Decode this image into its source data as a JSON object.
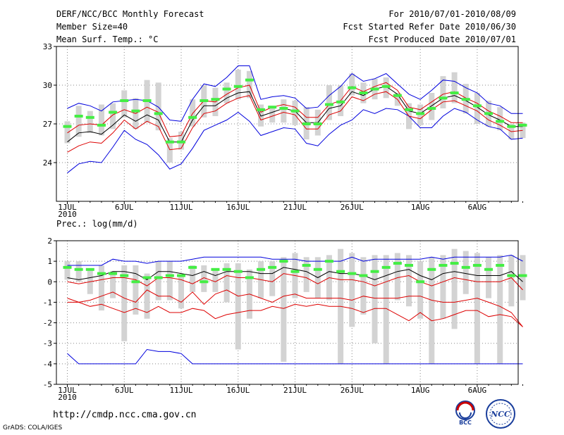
{
  "header": {
    "title": "DERF/NCC/BCC Monthly Forecast",
    "member_size": "Member Size=40",
    "variable": "Mean Surf. Temp.: °C",
    "period": "For 2010/07/01-2010/08/09",
    "started": "Fcst Started Refer Date 2010/06/30",
    "produced": "Fcst Produced Date 2010/07/01"
  },
  "footer": {
    "url": "http://cmdp.ncc.cma.gov.cn",
    "grads": "GrADS: COLA/IGES",
    "logo_bcc": "BCC",
    "logo_ncc": "NCC"
  },
  "colors": {
    "mean": "#000000",
    "band": "#dd0000",
    "extreme": "#0000dd",
    "box": "#d3d3d3",
    "obs": "#44ee44",
    "grid": "#888888"
  },
  "chart_data": [
    {
      "type": "box-plume",
      "title": "Mean Surf. Temp.: °C",
      "x_ticks": [
        "1JUL",
        "6JUL",
        "11JUL",
        "16JUL",
        "21JUL",
        "26JUL",
        "1AUG",
        "6AUG"
      ],
      "x_tick_days": [
        0,
        5,
        10,
        15,
        20,
        25,
        31,
        36
      ],
      "year_label": "2010",
      "ylim": [
        21,
        33
      ],
      "y_ticks": [
        24,
        27,
        30,
        33
      ],
      "series": [
        {
          "name": "max",
          "values": [
            23.2,
            23.9,
            24.1,
            24.0,
            25.2,
            26.5,
            25.8,
            25.4,
            24.6,
            23.5,
            23.9,
            25.1,
            26.5,
            26.9,
            27.3,
            27.9,
            27.2,
            26.1,
            26.4,
            26.7,
            26.6,
            25.5,
            25.3,
            26.2,
            26.9,
            27.3,
            28.1,
            27.8,
            28.2,
            28.1,
            27.6,
            26.7,
            26.7,
            27.6,
            28.2,
            27.9,
            27.3,
            26.8,
            26.6,
            25.8,
            25.9
          ]
        },
        {
          "name": "p90",
          "values": [
            24.8,
            25.3,
            25.6,
            25.5,
            26.3,
            27.3,
            26.6,
            27.2,
            26.8,
            25.0,
            25.1,
            26.7,
            27.8,
            28.0,
            28.6,
            29.0,
            29.2,
            27.3,
            27.6,
            27.9,
            27.7,
            26.6,
            26.6,
            27.7,
            28.0,
            29.1,
            28.8,
            29.3,
            29.5,
            28.9,
            27.6,
            27.4,
            28.1,
            28.7,
            28.8,
            28.4,
            28.0,
            27.3,
            26.9,
            26.4,
            26.5
          ]
        },
        {
          "name": "mean",
          "values": [
            25.6,
            26.3,
            26.4,
            26.2,
            26.9,
            27.7,
            27.2,
            27.7,
            27.3,
            25.6,
            25.6,
            27.3,
            28.4,
            28.4,
            29.0,
            29.4,
            29.5,
            27.6,
            27.9,
            28.2,
            28.0,
            27.1,
            27.1,
            28.2,
            28.4,
            29.5,
            29.2,
            29.7,
            29.9,
            29.3,
            28.0,
            27.8,
            28.4,
            29.0,
            29.2,
            28.8,
            28.3,
            27.7,
            27.3,
            26.8,
            26.8
          ]
        },
        {
          "name": "p10",
          "values": [
            26.3,
            26.9,
            27.0,
            26.9,
            27.7,
            28.1,
            27.8,
            28.3,
            27.9,
            26.0,
            26.1,
            27.8,
            28.8,
            28.7,
            29.3,
            29.8,
            30.0,
            27.9,
            28.3,
            28.5,
            28.3,
            27.5,
            27.5,
            28.5,
            28.8,
            29.9,
            29.5,
            29.9,
            30.2,
            29.6,
            28.3,
            28.1,
            28.7,
            29.3,
            29.5,
            29.0,
            28.6,
            28.0,
            27.6,
            27.1,
            27.1
          ]
        },
        {
          "name": "min",
          "values": [
            28.2,
            28.6,
            28.4,
            28.0,
            28.7,
            28.8,
            28.9,
            28.8,
            28.3,
            27.3,
            27.2,
            28.9,
            30.1,
            29.9,
            30.6,
            31.5,
            31.5,
            28.9,
            29.1,
            29.2,
            29.0,
            28.2,
            28.3,
            29.2,
            29.9,
            30.9,
            30.3,
            30.5,
            30.9,
            30.1,
            29.3,
            28.9,
            29.6,
            30.4,
            30.3,
            29.8,
            29.4,
            28.6,
            28.4,
            27.8,
            27.8
          ]
        },
        {
          "name": "observed",
          "values": [
            26.8,
            27.6,
            27.5,
            26.9,
            27.9,
            28.8,
            28.0,
            28.8,
            27.8,
            25.6,
            25.6,
            27.5,
            28.8,
            28.9,
            29.7,
            29.9,
            30.4,
            28.1,
            28.3,
            28.2,
            28.0,
            27.0,
            27.0,
            28.5,
            28.7,
            29.8,
            29.4,
            29.7,
            29.9,
            29.2,
            28.1,
            27.8,
            28.2,
            29.0,
            29.4,
            28.9,
            28.4,
            27.8,
            27.2,
            26.8,
            26.9
          ]
        }
      ],
      "box_low": [
        25.5,
        26.0,
        26.3,
        26.1,
        26.6,
        27.5,
        26.6,
        27.1,
        26.5,
        24.0,
        25.0,
        26.8,
        27.5,
        27.6,
        28.6,
        28.9,
        29.0,
        26.8,
        27.1,
        27.1,
        26.9,
        25.8,
        26.1,
        27.3,
        27.6,
        29.2,
        28.6,
        28.9,
        29.0,
        28.4,
        26.6,
        26.9,
        27.3,
        28.2,
        28.6,
        27.8,
        27.0,
        26.8,
        26.5,
        25.8,
        25.9
      ],
      "box_high": [
        27.2,
        28.4,
        28.0,
        28.5,
        28.6,
        29.6,
        29.0,
        30.4,
        30.2,
        25.9,
        26.4,
        28.9,
        30.0,
        29.8,
        30.2,
        31.2,
        31.1,
        28.5,
        28.4,
        28.9,
        28.8,
        28.3,
        28.1,
        30.0,
        30.0,
        30.9,
        30.2,
        30.5,
        30.6,
        29.4,
        28.6,
        28.5,
        29.4,
        30.7,
        31.0,
        30.1,
        29.4,
        28.8,
        28.3,
        27.0,
        27.1
      ]
    },
    {
      "type": "box-plume",
      "title": "Prec.: log(mm/d)",
      "x_ticks": [
        "1JUL",
        "6JUL",
        "11JUL",
        "16JUL",
        "21JUL",
        "26JUL",
        "1AUG",
        "6AUG"
      ],
      "x_tick_days": [
        0,
        5,
        10,
        15,
        20,
        25,
        31,
        36
      ],
      "year_label": "2010",
      "ylim": [
        -5,
        2
      ],
      "y_ticks": [
        -5,
        -4,
        -3,
        -2,
        -1,
        0,
        1,
        2
      ],
      "series": [
        {
          "name": "max",
          "values": [
            0.8,
            0.8,
            0.8,
            0.8,
            1.1,
            1.0,
            1.0,
            0.9,
            1.0,
            1.0,
            1.0,
            1.1,
            1.2,
            1.2,
            1.2,
            1.2,
            1.2,
            1.2,
            1.1,
            1.1,
            1.1,
            1.0,
            1.0,
            1.0,
            1.0,
            1.2,
            1.0,
            1.1,
            1.1,
            1.1,
            1.1,
            1.1,
            1.2,
            1.1,
            1.2,
            1.2,
            1.2,
            1.2,
            1.2,
            1.3,
            1.0
          ]
        },
        {
          "name": "mean",
          "values": [
            0.2,
            0.1,
            0.2,
            0.3,
            0.5,
            0.5,
            0.4,
            0.1,
            0.5,
            0.5,
            0.4,
            0.3,
            0.5,
            0.3,
            0.5,
            0.5,
            0.5,
            0.4,
            0.4,
            0.7,
            0.6,
            0.5,
            0.2,
            0.5,
            0.4,
            0.4,
            0.3,
            0.1,
            0.3,
            0.5,
            0.6,
            0.3,
            0.1,
            0.4,
            0.5,
            0.4,
            0.3,
            0.3,
            0.3,
            0.5,
            0.0
          ]
        },
        {
          "name": "p10",
          "values": [
            0.0,
            -0.1,
            0.0,
            0.1,
            0.2,
            0.2,
            0.1,
            -0.2,
            0.2,
            0.2,
            0.1,
            -0.1,
            0.2,
            0.0,
            0.3,
            0.2,
            0.2,
            0.1,
            0.0,
            0.4,
            0.3,
            0.2,
            -0.1,
            0.2,
            0.1,
            0.1,
            0.0,
            -0.2,
            0.0,
            0.2,
            0.3,
            0.0,
            -0.2,
            0.0,
            0.2,
            0.1,
            0.0,
            0.0,
            0.0,
            0.2,
            -0.4
          ]
        },
        {
          "name": "p90",
          "values": [
            -0.8,
            -1.0,
            -0.9,
            -0.7,
            -0.5,
            -0.8,
            -1.0,
            -0.4,
            -0.7,
            -0.7,
            -1.0,
            -0.5,
            -1.1,
            -0.6,
            -0.4,
            -0.7,
            -0.6,
            -0.8,
            -1.0,
            -0.7,
            -0.6,
            -0.8,
            -0.8,
            -0.8,
            -0.8,
            -0.9,
            -0.7,
            -0.8,
            -0.8,
            -0.8,
            -0.7,
            -0.7,
            -0.9,
            -1.0,
            -1.0,
            -0.9,
            -0.8,
            -1.0,
            -1.2,
            -1.5,
            -2.2
          ]
        },
        {
          "name": "p95",
          "values": [
            -1.0,
            -1.0,
            -1.2,
            -1.1,
            -1.3,
            -1.5,
            -1.3,
            -1.5,
            -1.2,
            -1.5,
            -1.5,
            -1.3,
            -1.4,
            -1.8,
            -1.6,
            -1.5,
            -1.4,
            -1.4,
            -1.2,
            -1.3,
            -1.1,
            -1.2,
            -1.1,
            -1.2,
            -1.2,
            -1.3,
            -1.5,
            -1.3,
            -1.3,
            -1.6,
            -1.9,
            -1.5,
            -1.9,
            -1.8,
            -1.6,
            -1.4,
            -1.4,
            -1.7,
            -1.6,
            -1.7,
            -2.2
          ]
        },
        {
          "name": "min",
          "values": [
            -3.5,
            -4.0,
            -4.0,
            -4.0,
            -4.0,
            -4.0,
            -4.0,
            -3.3,
            -3.4,
            -3.4,
            -3.5,
            -4.0,
            -4.0,
            -4.0,
            -4.0,
            -4.0,
            -4.0,
            -4.0,
            -4.0,
            -4.0,
            -4.0,
            -4.0,
            -4.0,
            -4.0,
            -4.0,
            -4.0,
            -4.0,
            -4.0,
            -4.0,
            -4.0,
            -4.0,
            -4.0,
            -4.0,
            -4.0,
            -4.0,
            -4.0,
            -4.0,
            -4.0,
            -4.0,
            -4.0,
            -4.0
          ]
        },
        {
          "name": "observed",
          "values": [
            0.7,
            0.6,
            0.6,
            0.4,
            0.4,
            0.3,
            0.0,
            0.2,
            0.2,
            0.3,
            0.3,
            0.7,
            0.0,
            0.6,
            0.6,
            0.5,
            0.2,
            0.6,
            0.7,
            1.0,
            0.5,
            0.8,
            0.6,
            1.0,
            0.5,
            0.4,
            0.3,
            0.5,
            0.7,
            0.9,
            0.8,
            0.0,
            0.6,
            0.8,
            0.9,
            0.7,
            0.8,
            0.6,
            0.8,
            0.3,
            0.3
          ]
        }
      ],
      "box_low": [
        0.1,
        0.0,
        -0.6,
        -1.4,
        -0.8,
        -2.9,
        -1.6,
        -1.8,
        -0.9,
        -0.9,
        -1.3,
        -0.5,
        -0.5,
        -0.5,
        -1.0,
        -3.3,
        -1.8,
        -0.8,
        -0.7,
        -3.9,
        -0.8,
        -0.5,
        -0.8,
        -0.9,
        -4.0,
        -2.2,
        -1.6,
        -3.0,
        -4.0,
        -0.9,
        -1.2,
        -1.8,
        -4.0,
        -1.8,
        -2.3,
        -0.6,
        -4.0,
        -0.8,
        -4.0,
        -1.2,
        -0.9
      ],
      "box_high": [
        1.0,
        1.0,
        0.6,
        0.8,
        0.5,
        0.8,
        0.8,
        0.4,
        1.0,
        1.0,
        0.3,
        0.8,
        0.8,
        0.6,
        0.9,
        0.9,
        0.6,
        1.0,
        1.0,
        1.2,
        1.4,
        1.2,
        1.2,
        1.3,
        1.6,
        1.4,
        1.2,
        1.3,
        1.3,
        1.4,
        1.3,
        1.0,
        1.2,
        1.3,
        1.6,
        1.5,
        1.4,
        1.2,
        1.3,
        1.3,
        1.3
      ]
    }
  ]
}
